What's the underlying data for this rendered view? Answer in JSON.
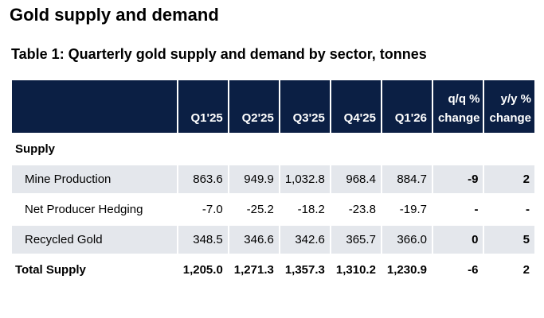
{
  "page": {
    "title": "Gold supply and demand",
    "caption": "Table 1: Quarterly gold supply and demand by sector, tonnes"
  },
  "colors": {
    "header_bg": "#0b1f44",
    "shaded_row_bg": "#e4e7ec"
  },
  "table": {
    "columns": [
      "",
      "Q1'25",
      "Q2'25",
      "Q3'25",
      "Q4'25",
      "Q1'26"
    ],
    "change_columns": [
      {
        "line1": "q/q %",
        "line2": "change"
      },
      {
        "line1": "y/y %",
        "line2": "change"
      }
    ],
    "section_label": "Supply",
    "rows": [
      {
        "label": "Mine Production",
        "values": [
          "863.6",
          "949.9",
          "1,032.8",
          "968.4",
          "884.7"
        ],
        "qq": "-9",
        "yy": "2"
      },
      {
        "label": "Net Producer Hedging",
        "values": [
          "-7.0",
          "-25.2",
          "-18.2",
          "-23.8",
          "-19.7"
        ],
        "qq": "-",
        "yy": "-"
      },
      {
        "label": "Recycled Gold",
        "values": [
          "348.5",
          "346.6",
          "342.6",
          "365.7",
          "366.0"
        ],
        "qq": "0",
        "yy": "5"
      }
    ],
    "total": {
      "label": "Total Supply",
      "values": [
        "1,205.0",
        "1,271.3",
        "1,357.3",
        "1,310.2",
        "1,230.9"
      ],
      "qq": "-6",
      "yy": "2"
    }
  }
}
